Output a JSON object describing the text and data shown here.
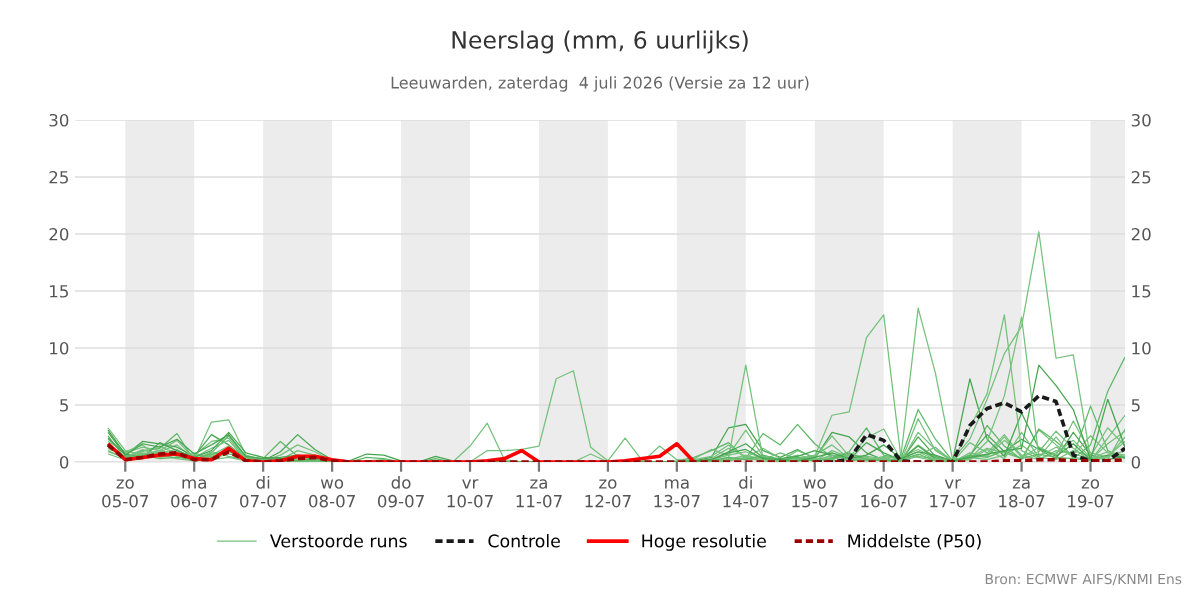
{
  "chart_data": {
    "type": "line",
    "title": "Neerslag (mm, 6 uurlijks)",
    "subtitle": "Leeuwarden, zaterdag  4 juli 2026 (Versie za 12 uur)",
    "annotations": [
      "Bron: ECMWF AIFS/KNMI Ens"
    ],
    "x": [
      "2026-07-04T18:00",
      "2026-07-05T00:00",
      "2026-07-05T06:00",
      "2026-07-05T12:00",
      "2026-07-05T18:00",
      "2026-07-06T00:00",
      "2026-07-06T06:00",
      "2026-07-06T12:00",
      "2026-07-06T18:00",
      "2026-07-07T00:00",
      "2026-07-07T06:00",
      "2026-07-07T12:00",
      "2026-07-07T18:00",
      "2026-07-08T00:00",
      "2026-07-08T06:00",
      "2026-07-08T12:00",
      "2026-07-08T18:00",
      "2026-07-09T00:00",
      "2026-07-09T06:00",
      "2026-07-09T12:00",
      "2026-07-09T18:00",
      "2026-07-10T00:00",
      "2026-07-10T06:00",
      "2026-07-10T12:00",
      "2026-07-10T18:00",
      "2026-07-11T00:00",
      "2026-07-11T06:00",
      "2026-07-11T12:00",
      "2026-07-11T18:00",
      "2026-07-12T00:00",
      "2026-07-12T06:00",
      "2026-07-12T12:00",
      "2026-07-12T18:00",
      "2026-07-13T00:00",
      "2026-07-13T06:00",
      "2026-07-13T12:00",
      "2026-07-13T18:00",
      "2026-07-14T00:00",
      "2026-07-14T06:00",
      "2026-07-14T12:00",
      "2026-07-14T18:00",
      "2026-07-15T00:00",
      "2026-07-15T06:00",
      "2026-07-15T12:00",
      "2026-07-15T18:00",
      "2026-07-16T00:00",
      "2026-07-16T06:00",
      "2026-07-16T12:00",
      "2026-07-16T18:00",
      "2026-07-17T00:00",
      "2026-07-17T06:00",
      "2026-07-17T12:00",
      "2026-07-17T18:00",
      "2026-07-18T00:00",
      "2026-07-18T06:00",
      "2026-07-18T12:00",
      "2026-07-18T18:00",
      "2026-07-19T00:00",
      "2026-07-19T06:00",
      "2026-07-19T12:00"
    ],
    "xlim": [
      "2026-07-04T06:30",
      "2026-07-19T12:00"
    ],
    "xticks": [
      {
        "value": "2026-07-05",
        "label": "zo\n05-07"
      },
      {
        "value": "2026-07-06",
        "label": "ma\n06-07"
      },
      {
        "value": "2026-07-07",
        "label": "di\n07-07"
      },
      {
        "value": "2026-07-08",
        "label": "wo\n08-07"
      },
      {
        "value": "2026-07-09",
        "label": "do\n09-07"
      },
      {
        "value": "2026-07-10",
        "label": "vr\n10-07"
      },
      {
        "value": "2026-07-11",
        "label": "za\n11-07"
      },
      {
        "value": "2026-07-12",
        "label": "zo\n12-07"
      },
      {
        "value": "2026-07-13",
        "label": "ma\n13-07"
      },
      {
        "value": "2026-07-14",
        "label": "di\n14-07"
      },
      {
        "value": "2026-07-15",
        "label": "wo\n15-07"
      },
      {
        "value": "2026-07-16",
        "label": "do\n16-07"
      },
      {
        "value": "2026-07-17",
        "label": "vr\n17-07"
      },
      {
        "value": "2026-07-18",
        "label": "za\n18-07"
      },
      {
        "value": "2026-07-19",
        "label": "zo\n19-07"
      }
    ],
    "ylim": [
      0,
      30
    ],
    "yticks": [
      0,
      5,
      10,
      15,
      20,
      25,
      30
    ],
    "y2lim": [
      0,
      30
    ],
    "y2ticks": [
      0,
      5,
      10,
      15,
      20,
      25,
      30
    ],
    "grid": "y",
    "legend": "bottom",
    "bands": [
      {
        "axis": "x",
        "from": "2026-07-05",
        "to": "2026-07-06",
        "color": "#ececec"
      },
      {
        "axis": "x",
        "from": "2026-07-07",
        "to": "2026-07-08",
        "color": "#ececec"
      },
      {
        "axis": "x",
        "from": "2026-07-09",
        "to": "2026-07-10",
        "color": "#ececec"
      },
      {
        "axis": "x",
        "from": "2026-07-11",
        "to": "2026-07-12",
        "color": "#ececec"
      },
      {
        "axis": "x",
        "from": "2026-07-13",
        "to": "2026-07-14",
        "color": "#ececec"
      },
      {
        "axis": "x",
        "from": "2026-07-15",
        "to": "2026-07-16",
        "color": "#ececec"
      },
      {
        "axis": "x",
        "from": "2026-07-17",
        "to": "2026-07-18",
        "color": "#ececec"
      },
      {
        "axis": "x",
        "from": "2026-07-19",
        "to": "2026-07-19T12:00",
        "color": "#ececec"
      }
    ],
    "series": [
      {
        "name": "Verstoorde runs",
        "color": "#74c17b",
        "values": [
          3.0,
          1.0,
          0.6,
          0.9,
          1.5,
          0.2,
          3.5,
          3.7,
          0.6,
          0.2,
          0.1,
          0.3,
          0.5,
          0.1,
          0.0,
          0.0,
          0.0,
          0.0,
          0.0,
          0.0,
          0.0,
          0.0,
          0.0,
          0.0,
          0.0,
          0.0,
          0.0,
          0.0,
          0.0,
          0.0,
          0.0,
          0.0,
          0.0,
          0.0,
          0.0,
          0.2,
          0.6,
          0.9,
          0.3,
          0.1,
          0.4,
          0.2,
          0.3,
          0.6,
          0.2,
          0.1,
          0.0,
          3.8,
          1.0,
          0.1,
          0.4,
          1.2,
          0.8,
          0.3,
          2.8,
          1.5,
          0.4,
          0.2,
          1.6,
          2.7
        ]
      },
      {
        "color": "#46a550",
        "values": [
          2.6,
          0.6,
          1.8,
          1.6,
          1.3,
          0.5,
          2.4,
          1.5,
          0.3,
          0.1,
          0.9,
          2.4,
          1.1,
          0.2,
          0.1,
          0.7,
          0.6,
          0.1,
          0.0,
          0.5,
          0.1,
          0.0,
          0.0,
          0.0,
          0.0,
          0.0,
          0.0,
          0.0,
          0.0,
          0.0,
          0.0,
          0.0,
          0.0,
          0.0,
          0.1,
          0.4,
          3.0,
          3.3,
          1.0,
          0.4,
          1.1,
          0.3,
          2.6,
          2.2,
          0.8,
          0.2,
          0.1,
          2.2,
          0.5,
          0.0,
          0.6,
          2.4,
          0.9,
          2.0,
          1.1,
          0.3,
          2.6,
          0.6,
          0.2,
          0.5
        ]
      },
      {
        "color": "#5db865",
        "values": [
          2.3,
          0.3,
          1.0,
          1.2,
          2.5,
          0.1,
          0.8,
          2.3,
          0.4,
          0.3,
          1.8,
          0.5,
          0.3,
          0.0,
          0.0,
          0.4,
          0.3,
          0.0,
          0.0,
          0.3,
          0.0,
          0.0,
          0.0,
          0.0,
          0.0,
          0.0,
          0.0,
          0.0,
          0.0,
          0.0,
          0.0,
          0.0,
          0.0,
          0.1,
          0.4,
          1.0,
          1.7,
          0.3,
          2.5,
          1.5,
          3.3,
          1.6,
          0.4,
          0.9,
          3.0,
          0.6,
          0.3,
          4.6,
          2.0,
          0.1,
          0.5,
          3.2,
          1.4,
          0.2,
          2.9,
          1.8,
          0.5,
          4.9,
          1.0,
          0.3
        ]
      },
      {
        "color": "#74c17b",
        "values": [
          1.5,
          0.2,
          0.8,
          0.6,
          0.9,
          0.4,
          1.2,
          1.9,
          0.2,
          0.0,
          0.2,
          1.0,
          0.6,
          0.1,
          0.0,
          0.1,
          0.2,
          0.0,
          0.0,
          0.1,
          0.0,
          1.4,
          3.4,
          0.2,
          0.0,
          0.0,
          0.0,
          0.0,
          0.0,
          0.0,
          0.0,
          0.0,
          0.0,
          0.0,
          0.0,
          0.3,
          1.2,
          0.5,
          0.2,
          0.8,
          0.3,
          0.1,
          1.0,
          0.4,
          2.1,
          2.9,
          0.2,
          0.6,
          1.3,
          0.0,
          1.7,
          0.8,
          2.4,
          0.5,
          0.9,
          2.7,
          1.2,
          0.1,
          2.1,
          4.1
        ]
      },
      {
        "color": "#74c17b",
        "values": [
          2.0,
          0.8,
          1.3,
          1.0,
          1.9,
          0.3,
          0.5,
          1.0,
          0.1,
          0.1,
          0.6,
          1.5,
          0.9,
          0.1,
          0.0,
          0.0,
          0.1,
          0.0,
          0.0,
          0.0,
          0.0,
          0.0,
          1.0,
          1.0,
          1.1,
          1.4,
          7.3,
          8.0,
          1.3,
          0.1,
          2.1,
          0.1,
          0.0,
          0.0,
          0.0,
          0.0,
          0.2,
          0.4,
          0.1,
          0.0,
          0.2,
          0.6,
          1.5,
          0.3,
          0.1,
          0.5,
          0.2,
          1.5,
          0.4,
          0.0,
          0.2,
          1.1,
          0.3,
          2.6,
          0.4,
          0.2,
          1.0,
          0.5,
          3.0,
          1.4
        ]
      },
      {
        "color": "#74c17b",
        "values": [
          1.2,
          0.5,
          0.9,
          1.4,
          0.7,
          0.6,
          1.8,
          2.1,
          0.3,
          0.2,
          0.2,
          0.4,
          0.2,
          0.0,
          0.0,
          0.0,
          0.0,
          0.0,
          0.0,
          0.0,
          0.0,
          0.0,
          0.0,
          0.0,
          0.0,
          0.0,
          0.0,
          0.0,
          0.7,
          0.0,
          0.0,
          0.0,
          1.4,
          0.2,
          0.0,
          0.1,
          0.4,
          8.5,
          0.3,
          0.2,
          0.6,
          0.3,
          0.1,
          0.2,
          0.5,
          0.3,
          0.0,
          2.6,
          1.1,
          0.2,
          0.3,
          0.6,
          2.2,
          0.4,
          1.3,
          0.6,
          3.6,
          0.8,
          0.4,
          2.2
        ]
      },
      {
        "color": "#74c17b",
        "values": [
          0.9,
          0.4,
          0.5,
          0.8,
          1.1,
          0.2,
          0.6,
          1.4,
          0.2,
          0.0,
          0.1,
          0.2,
          0.1,
          0.0,
          0.0,
          0.0,
          0.0,
          0.0,
          0.0,
          0.0,
          0.0,
          0.0,
          0.0,
          0.0,
          0.0,
          0.0,
          0.0,
          0.0,
          0.0,
          0.0,
          0.0,
          0.0,
          0.0,
          0.0,
          0.2,
          0.5,
          1.5,
          0.4,
          1.2,
          0.3,
          0.3,
          0.5,
          4.1,
          4.4,
          10.9,
          12.9,
          0.4,
          1.1,
          0.3,
          0.0,
          0.8,
          0.5,
          1.9,
          0.6,
          0.2,
          1.0,
          0.7,
          0.3,
          0.9,
          0.6
        ]
      },
      {
        "color": "#74c17b",
        "values": [
          1.8,
          0.9,
          1.5,
          0.4,
          0.6,
          0.8,
          0.3,
          0.7,
          0.5,
          0.1,
          0.1,
          0.2,
          0.4,
          0.0,
          0.0,
          0.0,
          0.0,
          0.0,
          0.0,
          0.0,
          0.0,
          0.0,
          0.0,
          0.0,
          0.0,
          0.0,
          0.0,
          0.0,
          0.0,
          0.0,
          0.0,
          0.0,
          0.0,
          0.0,
          0.3,
          1.1,
          0.6,
          2.8,
          0.5,
          0.1,
          1.0,
          0.4,
          2.3,
          0.5,
          0.1,
          0.4,
          0.5,
          13.5,
          7.8,
          0.2,
          0.4,
          0.2,
          0.6,
          1.5,
          0.4,
          2.2,
          0.3,
          0.1,
          0.5,
          1.8
        ]
      },
      {
        "color": "#46a550",
        "values": [
          2.8,
          0.7,
          0.4,
          1.7,
          1.0,
          0.4,
          1.0,
          2.6,
          0.8,
          0.4,
          0.3,
          0.1,
          0.3,
          0.1,
          0.0,
          0.0,
          0.0,
          0.0,
          0.0,
          0.1,
          0.0,
          0.0,
          0.0,
          0.0,
          0.0,
          0.0,
          0.0,
          0.0,
          0.0,
          0.0,
          0.0,
          0.0,
          0.0,
          0.0,
          0.1,
          0.2,
          0.9,
          1.6,
          0.4,
          0.3,
          0.5,
          1.0,
          0.6,
          0.2,
          1.7,
          0.8,
          0.2,
          1.4,
          0.3,
          0.1,
          7.3,
          2.0,
          0.5,
          4.3,
          1.2,
          0.5,
          1.6,
          0.2,
          0.6,
          0.4
        ]
      },
      {
        "color": "#74c17b",
        "values": [
          1.0,
          0.3,
          0.7,
          1.0,
          0.5,
          0.1,
          0.4,
          1.1,
          0.4,
          0.0,
          0.0,
          0.1,
          0.0,
          0.0,
          0.0,
          0.0,
          0.0,
          0.0,
          0.0,
          0.0,
          0.0,
          0.0,
          0.0,
          0.0,
          0.0,
          0.0,
          0.0,
          0.0,
          0.0,
          0.0,
          0.0,
          0.0,
          0.0,
          0.0,
          0.0,
          0.1,
          0.2,
          0.6,
          0.2,
          0.1,
          0.1,
          0.3,
          0.2,
          0.7,
          0.4,
          0.1,
          0.3,
          0.9,
          0.2,
          0.2,
          2.0,
          5.5,
          9.5,
          11.9,
          20.2,
          9.1,
          9.4,
          0.3,
          0.5,
          1.0
        ]
      },
      {
        "color": "#74c17b",
        "values": [
          1.6,
          0.4,
          1.1,
          0.5,
          0.8,
          0.2,
          0.9,
          0.5,
          0.2,
          0.1,
          0.0,
          0.0,
          0.2,
          0.0,
          0.0,
          0.0,
          0.0,
          0.0,
          0.0,
          0.0,
          0.0,
          0.0,
          0.0,
          0.0,
          0.0,
          0.0,
          0.0,
          0.0,
          0.0,
          0.0,
          0.0,
          0.0,
          0.0,
          0.0,
          0.0,
          0.0,
          0.3,
          0.2,
          0.5,
          0.1,
          0.2,
          0.1,
          0.6,
          0.2,
          0.3,
          0.2,
          0.6,
          0.4,
          0.1,
          0.0,
          3.0,
          6.0,
          12.9,
          1.0,
          0.3,
          0.8,
          1.9,
          0.4,
          0.2,
          2.9
        ]
      },
      {
        "color": "#74c17b",
        "values": [
          0.7,
          0.2,
          0.3,
          0.6,
          0.3,
          0.1,
          0.2,
          0.4,
          0.1,
          0.0,
          0.0,
          0.0,
          0.0,
          0.0,
          0.0,
          0.0,
          0.0,
          0.0,
          0.0,
          0.0,
          0.0,
          0.0,
          0.0,
          0.0,
          0.0,
          0.0,
          0.0,
          0.0,
          0.0,
          0.0,
          0.0,
          0.0,
          0.0,
          0.0,
          0.0,
          0.0,
          0.1,
          0.3,
          0.1,
          0.0,
          0.1,
          0.2,
          0.4,
          0.1,
          0.2,
          0.3,
          0.1,
          0.5,
          0.3,
          0.0,
          0.3,
          1.8,
          5.8,
          12.7,
          0.5,
          1.3,
          0.6,
          2.3,
          0.8,
          0.5
        ]
      },
      {
        "color": "#5db865",
        "values": [
          1.3,
          0.5,
          0.6,
          0.3,
          0.4,
          0.3,
          0.7,
          0.9,
          0.3,
          0.1,
          0.0,
          0.1,
          0.1,
          0.0,
          0.0,
          0.0,
          0.0,
          0.0,
          0.0,
          0.0,
          0.0,
          0.0,
          0.0,
          0.0,
          0.0,
          0.0,
          0.0,
          0.0,
          0.0,
          0.0,
          0.0,
          0.0,
          0.0,
          0.0,
          0.0,
          0.1,
          0.4,
          0.2,
          0.6,
          0.2,
          0.4,
          0.1,
          0.3,
          0.8,
          0.2,
          0.1,
          0.2,
          0.7,
          0.1,
          0.0,
          0.6,
          0.4,
          1.0,
          0.3,
          0.7,
          0.4,
          0.3,
          1.5,
          6.2,
          9.2
        ]
      },
      {
        "color": "#46a550",
        "values": [
          2.1,
          0.6,
          1.6,
          1.3,
          2.0,
          0.7,
          1.5,
          2.4,
          0.5,
          0.3,
          0.4,
          0.6,
          0.3,
          0.1,
          0.0,
          0.0,
          0.1,
          0.0,
          0.0,
          0.0,
          0.0,
          0.0,
          0.0,
          0.0,
          0.0,
          0.0,
          0.0,
          0.0,
          0.0,
          0.0,
          0.0,
          0.0,
          0.0,
          0.0,
          0.0,
          0.2,
          0.8,
          1.1,
          0.3,
          0.2,
          0.1,
          0.4,
          0.8,
          0.3,
          0.6,
          1.5,
          0.3,
          0.9,
          0.6,
          0.1,
          0.4,
          0.7,
          1.0,
          1.2,
          8.5,
          6.7,
          4.6,
          0.2,
          5.5,
          1.3
        ]
      },
      {
        "name": "Controle",
        "color": "#1a1a1a",
        "line_style": "dashed",
        "values": [
          null,
          null,
          null,
          null,
          null,
          null,
          null,
          null,
          null,
          null,
          null,
          null,
          null,
          null,
          null,
          null,
          null,
          null,
          null,
          null,
          null,
          null,
          null,
          null,
          null,
          null,
          null,
          null,
          null,
          null,
          null,
          null,
          null,
          null,
          null,
          null,
          null,
          null,
          null,
          null,
          null,
          0.0,
          0.0,
          0.2,
          2.4,
          1.9,
          0.1,
          0.0,
          0.0,
          0.0,
          3.2,
          4.7,
          5.2,
          4.4,
          5.8,
          5.3,
          0.6,
          0.1,
          0.1,
          1.2
        ]
      },
      {
        "name": "Hoge resolutie",
        "color": "#ff0000",
        "line_style": "solid",
        "values": [
          1.6,
          0.2,
          0.4,
          0.6,
          0.7,
          0.3,
          0.2,
          1.2,
          0.1,
          0.0,
          0.1,
          0.5,
          0.5,
          0.2,
          0.0,
          0.0,
          0.0,
          0.0,
          0.0,
          0.0,
          0.0,
          0.0,
          0.1,
          0.3,
          1.0,
          0.0,
          0.0,
          0.0,
          0.0,
          0.0,
          0.1,
          0.3,
          0.5,
          1.6,
          0.0,
          null,
          null,
          null,
          null,
          null,
          null,
          null,
          null,
          null,
          null,
          null,
          null,
          null,
          null,
          null,
          null,
          null,
          null,
          null,
          null,
          null,
          null,
          null,
          null,
          null
        ]
      },
      {
        "name": "Middelste (P50)",
        "color": "#990000",
        "line_style": "dashed",
        "values": [
          1.5,
          0.2,
          0.4,
          0.7,
          0.8,
          0.2,
          0.2,
          0.9,
          0.1,
          0.0,
          0.1,
          0.3,
          0.4,
          0.1,
          0.0,
          0.0,
          0.0,
          0.0,
          0.0,
          0.0,
          0.0,
          0.0,
          0.0,
          0.0,
          0.0,
          0.0,
          0.0,
          0.0,
          0.0,
          0.0,
          0.0,
          0.0,
          0.0,
          0.0,
          0.0,
          0.0,
          0.0,
          0.0,
          0.0,
          0.0,
          0.0,
          0.0,
          0.0,
          0.0,
          0.0,
          0.0,
          0.0,
          0.0,
          0.0,
          0.0,
          0.0,
          0.0,
          0.1,
          0.1,
          0.2,
          0.2,
          0.1,
          0.1,
          0.1,
          0.2
        ]
      }
    ]
  }
}
